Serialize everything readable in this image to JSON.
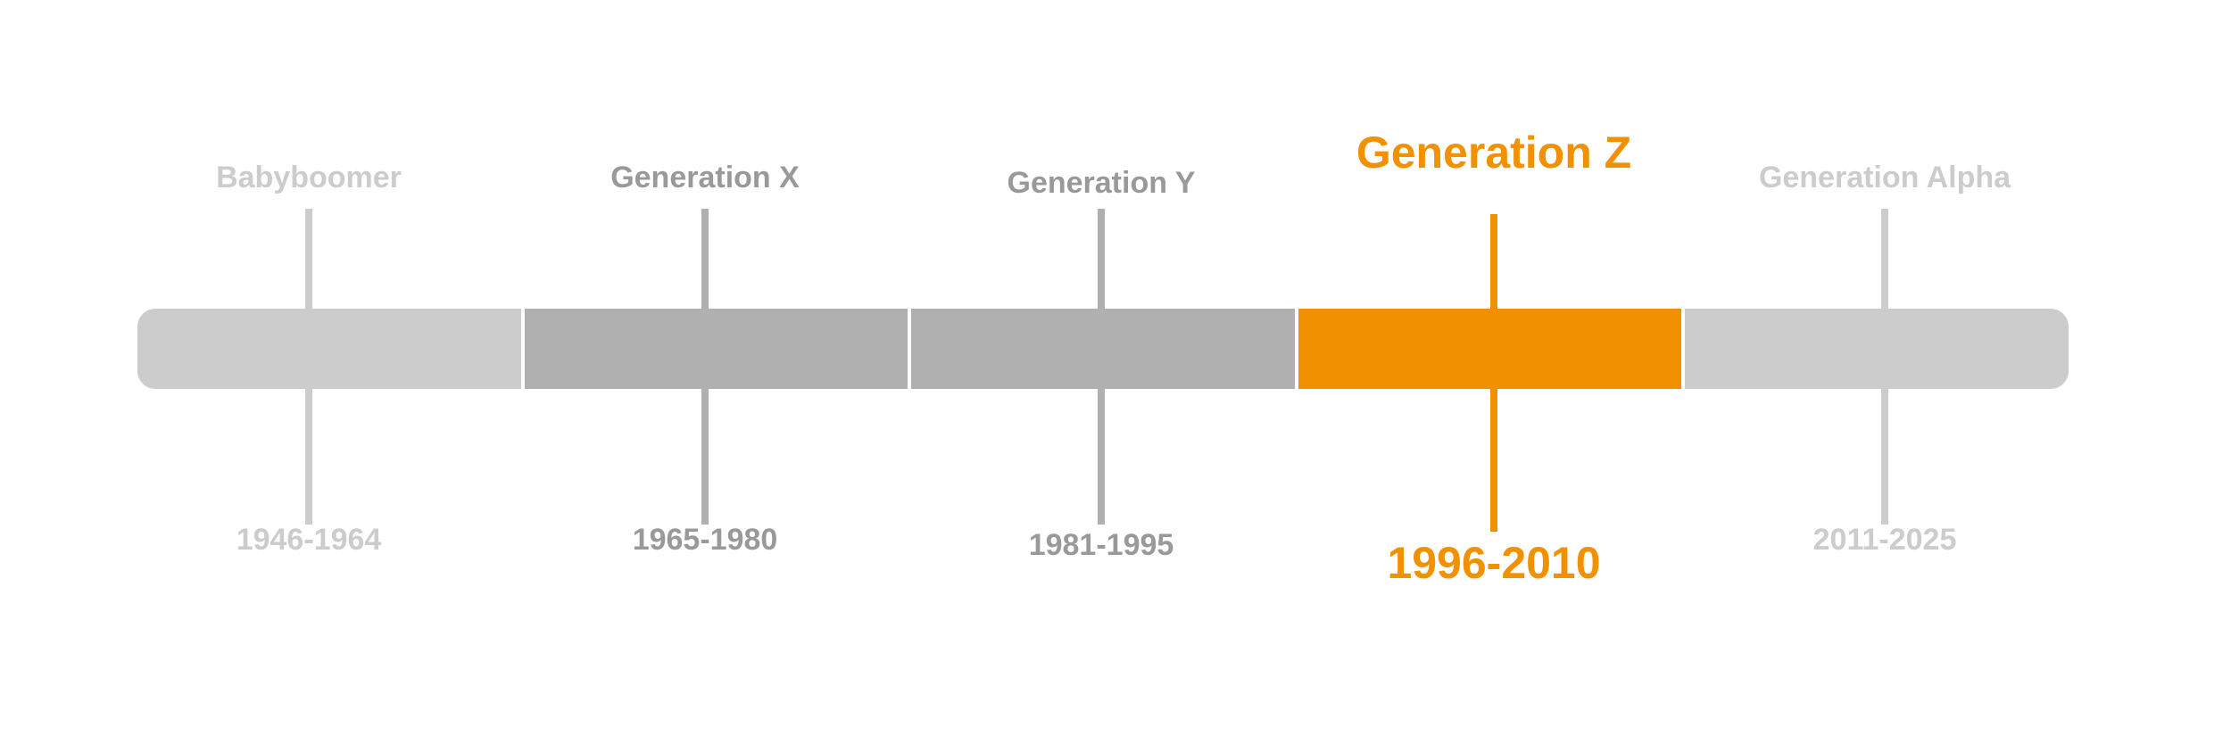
{
  "colors": {
    "light": "#cccccc",
    "mid": "#b0b0b0",
    "text_light": "#cccccc",
    "text_mid": "#999999",
    "accent": "#f29100"
  },
  "generations": [
    {
      "name": "Babyboomer",
      "years": "1946-1964",
      "tone": "light"
    },
    {
      "name": "Generation X",
      "years": "1965-1980",
      "tone": "mid"
    },
    {
      "name": "Generation Y",
      "years": "1981-1995",
      "tone": "mid"
    },
    {
      "name": "Generation Z",
      "years": "1996-2010",
      "tone": "accent",
      "highlighted": true
    },
    {
      "name": "Generation Alpha",
      "years": "2011-2025",
      "tone": "light"
    }
  ]
}
